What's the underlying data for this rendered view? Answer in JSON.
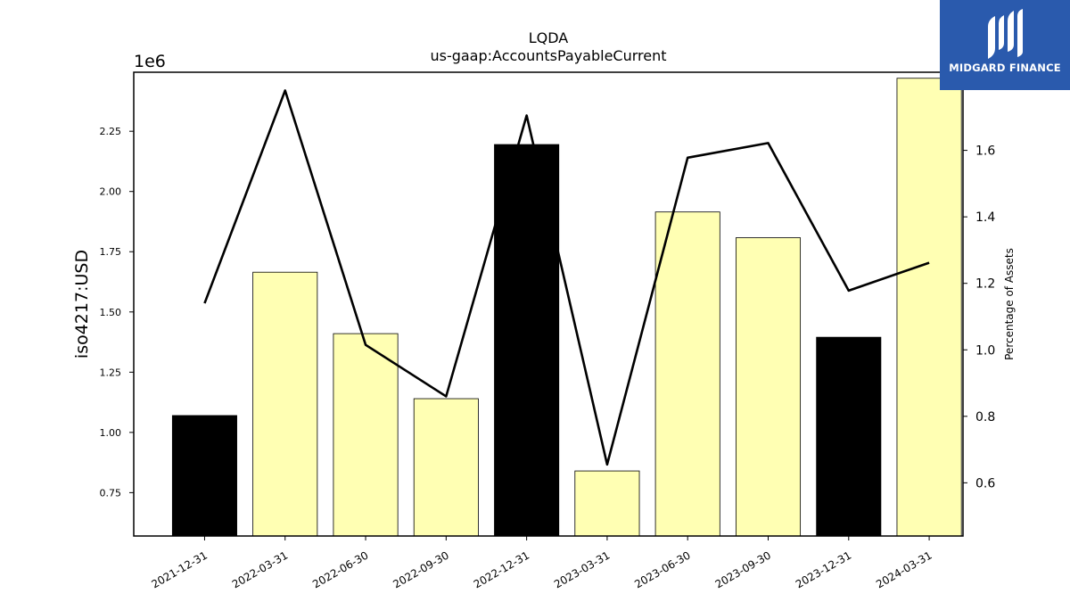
{
  "brand": {
    "name": "MIDGARD FINANCE",
    "color": "#2a5aad"
  },
  "chart_data": {
    "type": "bar",
    "title": "LQDA",
    "subtitle": "us-gaap:AccountsPayableCurrent",
    "ylabel": "iso4217:USD",
    "y2label": "Percentage of Assets",
    "offset_label": "1e6",
    "categories": [
      "2021-12-31",
      "2022-03-31",
      "2022-06-30",
      "2022-09-30",
      "2022-12-31",
      "2023-03-31",
      "2023-06-30",
      "2023-09-30",
      "2023-12-31",
      "2024-03-31"
    ],
    "values": [
      1.07,
      1.665,
      1.41,
      1.14,
      2.195,
      0.84,
      1.915,
      1.808,
      1.395,
      2.47
    ],
    "bar_colors": [
      "#000000",
      "#ffffb3",
      "#ffffb3",
      "#ffffb3",
      "#000000",
      "#ffffb3",
      "#ffffb3",
      "#ffffb3",
      "#000000",
      "#ffffb3"
    ],
    "line_values": [
      1.14,
      1.78,
      1.015,
      0.86,
      1.705,
      0.655,
      1.578,
      1.622,
      1.178,
      1.262
    ],
    "ylim": [
      0.57,
      2.495
    ],
    "y2lim": [
      0.44,
      1.835
    ],
    "yticks": [
      "0.75",
      "1.00",
      "1.25",
      "1.50",
      "1.75",
      "2.00",
      "2.25"
    ],
    "y2ticks": [
      "0.6",
      "0.8",
      "1.0",
      "1.2",
      "1.4",
      "1.6"
    ],
    "grid": false,
    "legend": "none"
  }
}
